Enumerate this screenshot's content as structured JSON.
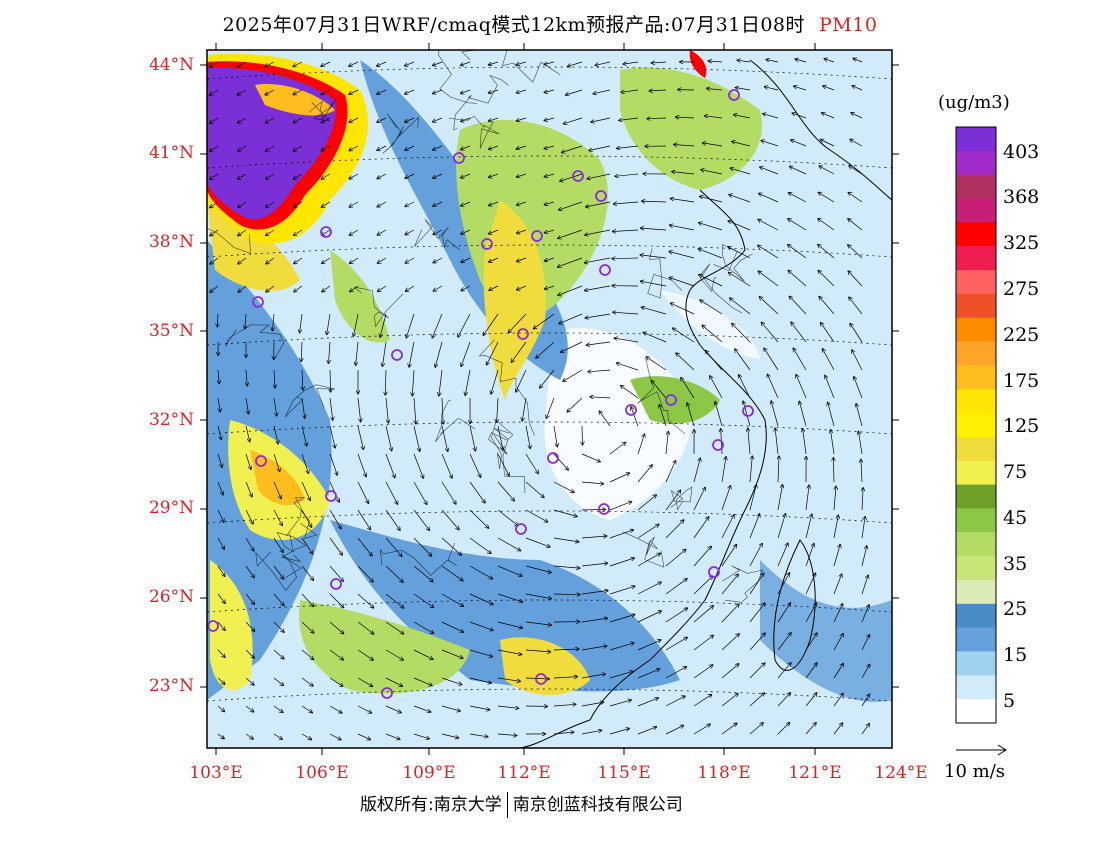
{
  "title": {
    "main": "2025年07月31日WRF/cmaq模式12km预报产品:07月31日08时",
    "variable": "PM10"
  },
  "axes": {
    "lat_labels": [
      "44°N",
      "41°N",
      "38°N",
      "35°N",
      "32°N",
      "29°N",
      "26°N",
      "23°N"
    ],
    "lon_labels": [
      "103°E",
      "106°E",
      "109°E",
      "112°E",
      "115°E",
      "118°E",
      "121°E",
      "124°E"
    ]
  },
  "colorbar": {
    "units": "(ug/m3)",
    "levels": [
      "403",
      "368",
      "325",
      "275",
      "225",
      "175",
      "125",
      "75",
      "45",
      "35",
      "25",
      "15",
      "5"
    ],
    "colors": [
      "#7b2fd6",
      "#a12bc8",
      "#b03060",
      "#c81e78",
      "#ff0000",
      "#f01e50",
      "#ff6060",
      "#f05028",
      "#ff8c00",
      "#ffa428",
      "#ffbe1e",
      "#ffe600",
      "#fff000",
      "#f0dc3c",
      "#f0f050",
      "#6ea028",
      "#8cc846",
      "#b4dc64",
      "#c8e678",
      "#dcebb4",
      "#4a8cc8",
      "#64a0dc",
      "#a0d2f0",
      "#d2ebfa",
      "#ffffff"
    ]
  },
  "wind_reference": {
    "label": "10 m/s"
  },
  "footer": {
    "left": "版权所有:南京大学",
    "right": "南京创蓝科技有限公司"
  }
}
